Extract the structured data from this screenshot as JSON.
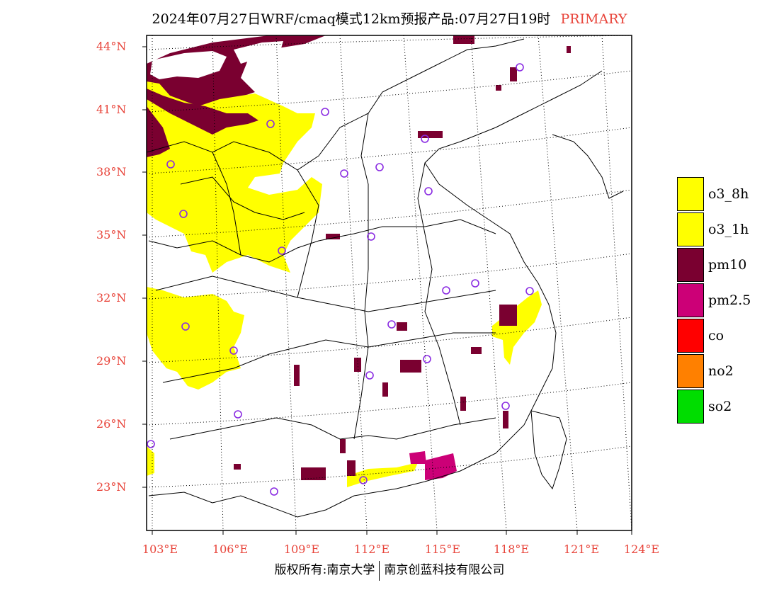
{
  "title": {
    "text": "2024年07月27日WRF/cmaq模式12km预报产品:07月27日19时",
    "tag": "PRIMARY"
  },
  "map": {
    "latitude_labels": [
      "44°N",
      "41°N",
      "38°N",
      "35°N",
      "32°N",
      "29°N",
      "26°N",
      "23°N"
    ],
    "longitude_labels": [
      "103°E",
      "106°E",
      "109°E",
      "112°E",
      "115°E",
      "118°E",
      "121°E",
      "124°E"
    ]
  },
  "legend": {
    "items": [
      {
        "label": "o3_8h",
        "color": "#ffff00"
      },
      {
        "label": "o3_1h",
        "color": "#ffff00"
      },
      {
        "label": "pm10",
        "color": "#7a0030"
      },
      {
        "label": "pm2.5",
        "color": "#cc0077"
      },
      {
        "label": "co",
        "color": "#ff0000"
      },
      {
        "label": "no2",
        "color": "#ff8000"
      },
      {
        "label": "so2",
        "color": "#00dd00"
      }
    ]
  },
  "footer": {
    "left": "版权所有:南京大学",
    "right": "南京创蓝科技有限公司"
  },
  "colors": {
    "axis_label": "#e8443a",
    "station_marker": "#8a2be2"
  }
}
